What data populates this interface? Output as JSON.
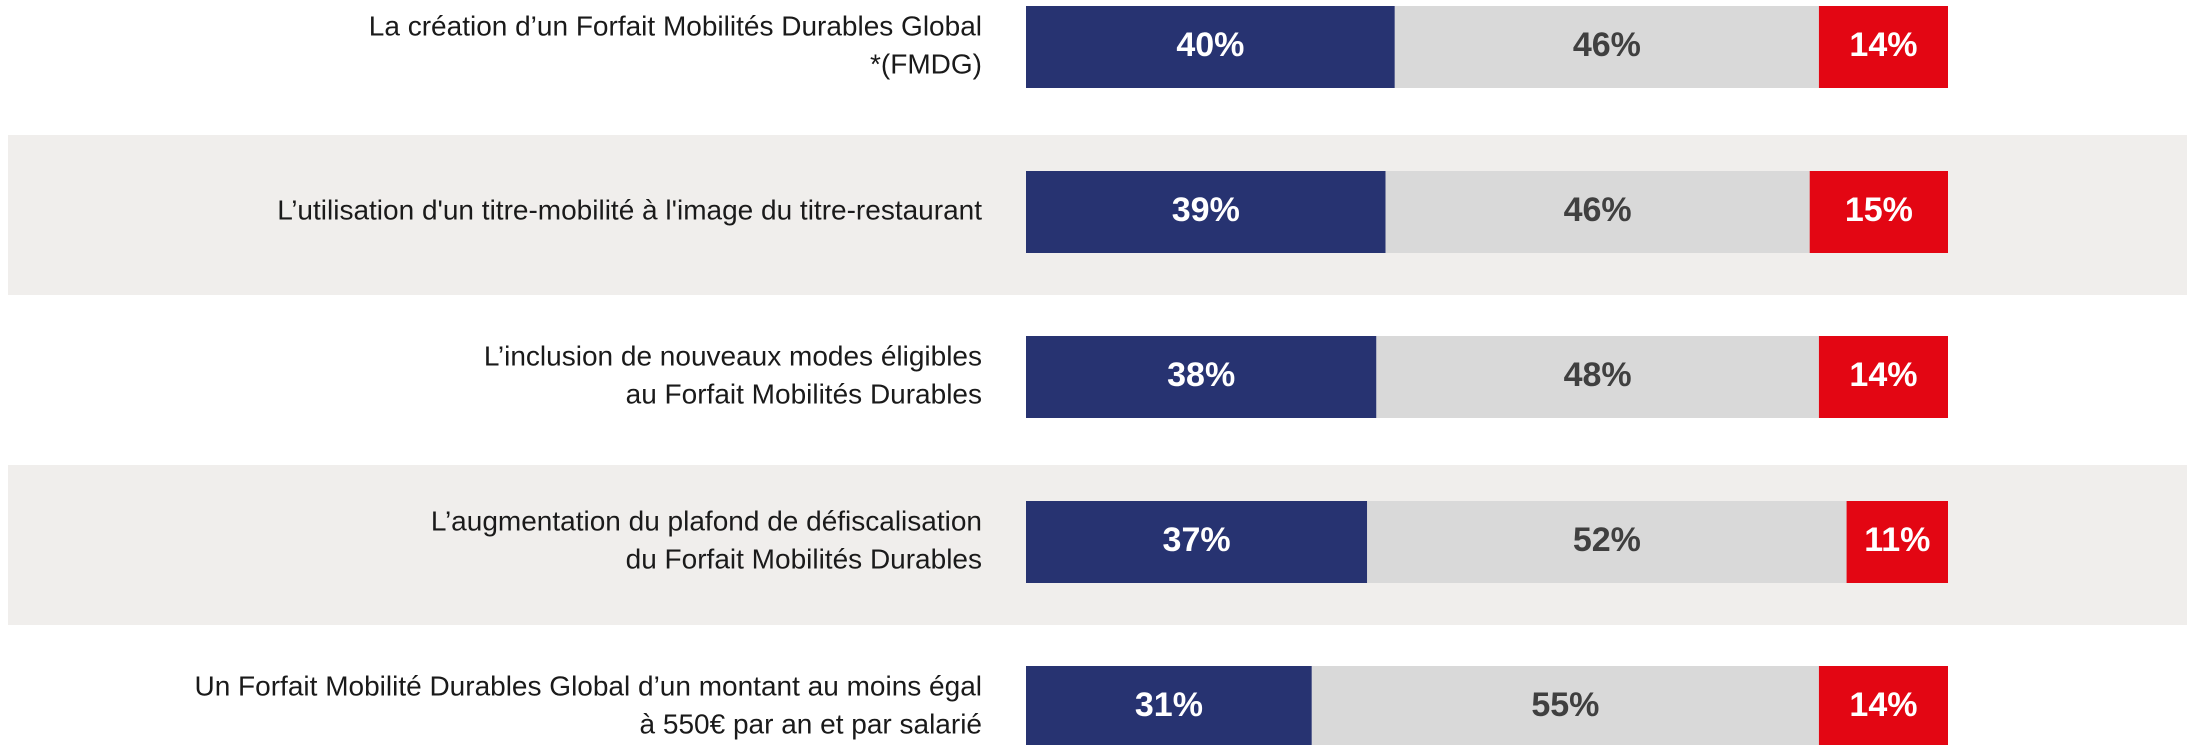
{
  "chart_data": {
    "type": "stacked-bar-horizontal",
    "categories": [
      [
        "La création d’un Forfait Mobilités Durables Global",
        "*(FMDG)"
      ],
      [
        "L’utilisation d'un titre-mobilité à l'image du titre-restaurant"
      ],
      [
        "L’inclusion de nouveaux modes éligibles",
        "au Forfait Mobilités Durables"
      ],
      [
        "L’augmentation du plafond de défiscalisation",
        "du Forfait Mobilités Durables"
      ],
      [
        "Un Forfait Mobilité Durables Global d’un montant au moins égal",
        "à 550€ par an et par salarié"
      ]
    ],
    "series": [
      {
        "color": "#273371",
        "label_color": "#ffffff",
        "values": [
          40,
          39,
          38,
          37,
          31
        ],
        "value_labels": [
          "40%",
          "39%",
          "38%",
          "37%",
          "31%"
        ]
      },
      {
        "color": "#d9d9d9",
        "label_color": "#404040",
        "values": [
          46,
          46,
          48,
          52,
          55
        ],
        "value_labels": [
          "46%",
          "46%",
          "48%",
          "52%",
          "55%"
        ]
      },
      {
        "color": "#e30613",
        "label_color": "#ffffff",
        "values": [
          14,
          15,
          14,
          11,
          14
        ],
        "value_labels": [
          "14%",
          "15%",
          "14%",
          "11%",
          "14%"
        ]
      }
    ],
    "xlim": [
      0,
      100
    ],
    "band_color": "#f0eeec"
  }
}
